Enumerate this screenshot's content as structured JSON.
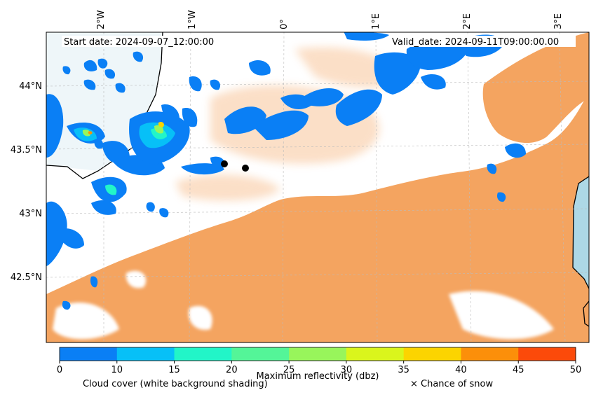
{
  "header": {
    "start_date": "Start date: 2024-09-07_12:00:00",
    "valid_date": "Valid_date: 2024-09-11T09:00:00.00"
  },
  "axes": {
    "lon_labels": [
      "2°W",
      "1°W",
      "0°",
      "1°E",
      "2°E",
      "3°E"
    ],
    "lat_labels": [
      "44°N",
      "43.5°N",
      "43°N",
      "42.5°N"
    ]
  },
  "colorbar": {
    "label": "Maximum reflectivity (dbz)",
    "ticks": [
      "0",
      "10",
      "15",
      "20",
      "25",
      "30",
      "35",
      "40",
      "45",
      "50"
    ],
    "colors": [
      "#0a7ff5",
      "#07c0f7",
      "#22f5c8",
      "#54f598",
      "#98f55b",
      "#daf51c",
      "#fcd400",
      "#fc8f0a",
      "#fc4a0a"
    ]
  },
  "legend": {
    "cloud_cover": "Cloud cover (white background shading)",
    "snow": "× Chance of snow"
  },
  "colors": {
    "cloud_orange": "#f4a460",
    "sea": "#add8e6",
    "reflectivity_low": "#0a7ff5"
  }
}
